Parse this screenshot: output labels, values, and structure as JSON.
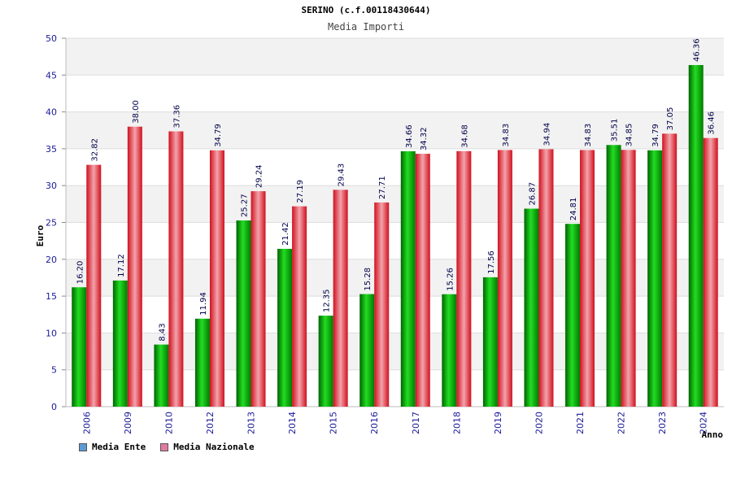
{
  "header": {
    "title": "SERINO (c.f.00118430644)",
    "subtitle": "Media Importi"
  },
  "legend": {
    "ente_label": "Media Ente",
    "nazionale_label": "Media Nazionale",
    "ente_color": "#5b9bd5",
    "nazionale_color": "#e07aa0"
  },
  "chart_data": {
    "type": "bar",
    "title": "Media Importi",
    "xlabel": "Anno",
    "ylabel": "Euro",
    "ylim": [
      0,
      50
    ],
    "yticks": [
      0,
      5,
      10,
      15,
      20,
      25,
      30,
      35,
      40,
      45,
      50
    ],
    "categories": [
      "2006",
      "2009",
      "2010",
      "2012",
      "2013",
      "2014",
      "2015",
      "2016",
      "2017",
      "2018",
      "2019",
      "2020",
      "2021",
      "2022",
      "2023",
      "2024"
    ],
    "series": [
      {
        "name": "Media Ente",
        "color": "#00b000",
        "values": [
          16.2,
          17.12,
          8.43,
          11.94,
          25.27,
          21.42,
          12.35,
          15.28,
          34.66,
          15.26,
          17.56,
          26.87,
          24.81,
          35.51,
          34.79,
          46.36
        ],
        "labels": [
          "16.20",
          "17.12",
          "8.43",
          "11.94",
          "25.27",
          "21.42",
          "12.35",
          "15.28",
          "34.66",
          "15.26",
          "17.56",
          "26.87",
          "24.81",
          "35.51",
          "34.79",
          "46.36"
        ]
      },
      {
        "name": "Media Nazionale",
        "color": "#e0303a",
        "values": [
          32.82,
          38.0,
          37.36,
          34.79,
          29.24,
          27.19,
          29.43,
          27.71,
          34.32,
          34.68,
          34.83,
          34.94,
          34.83,
          34.85,
          37.05,
          36.46
        ],
        "labels": [
          "32.82",
          "38.00",
          "37.36",
          "34.79",
          "29.24",
          "27.19",
          "29.43",
          "27.71",
          "34.32",
          "34.68",
          "34.83",
          "34.94",
          "34.83",
          "34.85",
          "37.05",
          "36.46"
        ]
      }
    ]
  }
}
